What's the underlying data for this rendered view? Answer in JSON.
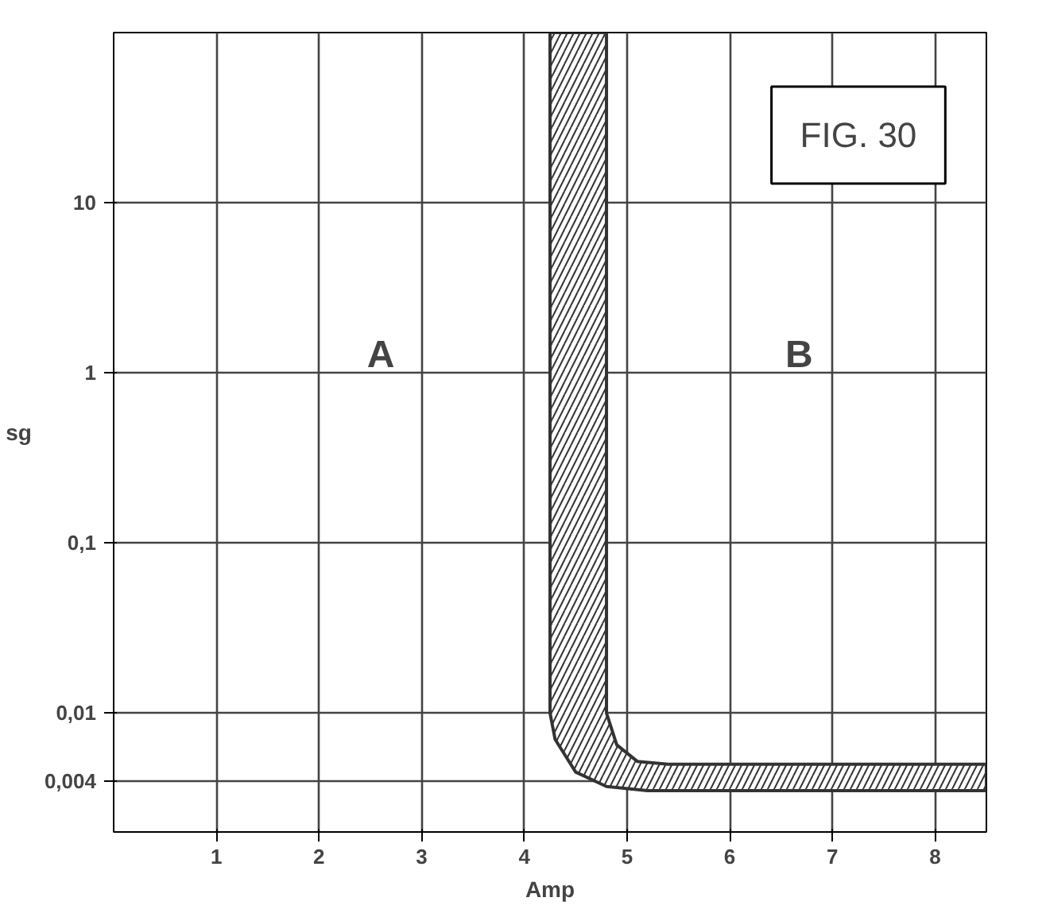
{
  "chart_data": {
    "type": "area",
    "xlabel": "Amp",
    "ylabel": "sg",
    "log": "y",
    "xlim": [
      0,
      8.5
    ],
    "ylim": [
      0.002,
      100
    ],
    "xticks": [
      1,
      2,
      3,
      4,
      5,
      6,
      7,
      8
    ],
    "yticks": [
      {
        "value": 0.004,
        "label": "0,004"
      },
      {
        "value": 0.01,
        "label": "0,01"
      },
      {
        "value": 0.1,
        "label": "0,1"
      },
      1,
      10
    ],
    "grid": true,
    "series": [
      {
        "color": "#333333",
        "x": [
          4.25,
          4.25,
          4.3,
          4.5,
          4.8,
          5.2,
          8.5,
          8.5,
          5.4,
          5.1,
          4.9,
          4.8,
          4.8
        ],
        "values": [
          100,
          0.01,
          0.007,
          0.0045,
          0.0037,
          0.0035,
          0.0035,
          0.005,
          0.005,
          0.0052,
          0.0065,
          0.01,
          100
        ]
      }
    ],
    "annotations": [
      "A",
      "B",
      "FIG. 30"
    ]
  }
}
